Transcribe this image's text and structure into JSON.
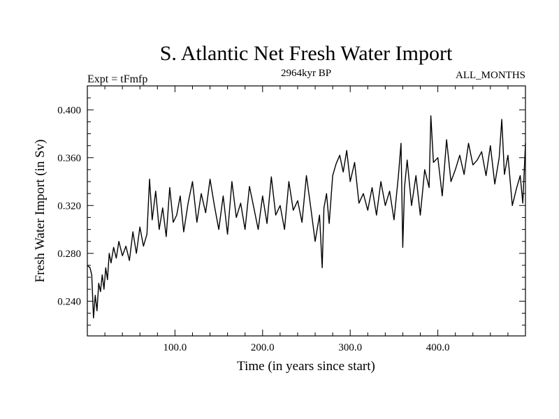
{
  "chart_data": {
    "type": "line",
    "title": "S. Atlantic Net Fresh Water Import",
    "subtitle": "2964kyr BP",
    "left_label": "Expt = tFmfp",
    "right_label": "ALL_MONTHS",
    "xlabel": "Time (in years since start)",
    "ylabel": "Fresh Water Import (in Sv)",
    "xlim": [
      0,
      500
    ],
    "ylim": [
      0.211,
      0.42
    ],
    "x_major_ticks": [
      100,
      200,
      300,
      400
    ],
    "x_tick_labels": [
      "100.0",
      "200.0",
      "300.0",
      "400.0"
    ],
    "y_major_ticks": [
      0.24,
      0.28,
      0.32,
      0.36,
      0.4
    ],
    "y_tick_labels": [
      "0.240",
      "0.280",
      "0.320",
      "0.360",
      "0.400"
    ],
    "series": [
      {
        "name": "Fresh Water Import",
        "color": "#000000",
        "x": [
          0,
          3,
          5,
          7,
          9,
          11,
          13,
          15,
          17,
          19,
          21,
          23,
          25,
          27,
          30,
          33,
          36,
          40,
          44,
          48,
          52,
          56,
          60,
          64,
          68,
          71,
          74,
          78,
          82,
          86,
          90,
          94,
          98,
          102,
          106,
          110,
          115,
          120,
          125,
          130,
          135,
          140,
          145,
          150,
          155,
          160,
          165,
          170,
          175,
          180,
          185,
          190,
          195,
          200,
          205,
          210,
          215,
          220,
          225,
          230,
          235,
          240,
          245,
          250,
          255,
          260,
          265,
          268,
          270,
          273,
          276,
          280,
          284,
          288,
          292,
          296,
          300,
          305,
          310,
          315,
          320,
          325,
          330,
          335,
          340,
          345,
          350,
          355,
          358,
          360,
          362,
          365,
          370,
          375,
          380,
          385,
          390,
          392,
          395,
          400,
          405,
          410,
          415,
          420,
          425,
          430,
          435,
          440,
          445,
          450,
          455,
          460,
          465,
          470,
          473,
          476,
          480,
          485,
          490,
          494,
          497,
          500
        ],
        "values": [
          0.27,
          0.268,
          0.262,
          0.226,
          0.245,
          0.232,
          0.255,
          0.248,
          0.262,
          0.25,
          0.268,
          0.258,
          0.28,
          0.272,
          0.285,
          0.276,
          0.29,
          0.278,
          0.286,
          0.274,
          0.298,
          0.28,
          0.302,
          0.286,
          0.296,
          0.342,
          0.308,
          0.332,
          0.3,
          0.318,
          0.294,
          0.335,
          0.306,
          0.312,
          0.328,
          0.298,
          0.322,
          0.34,
          0.306,
          0.33,
          0.314,
          0.342,
          0.32,
          0.3,
          0.328,
          0.296,
          0.34,
          0.31,
          0.322,
          0.3,
          0.336,
          0.318,
          0.3,
          0.328,
          0.305,
          0.344,
          0.312,
          0.32,
          0.3,
          0.34,
          0.316,
          0.324,
          0.306,
          0.345,
          0.318,
          0.29,
          0.312,
          0.268,
          0.318,
          0.33,
          0.305,
          0.345,
          0.355,
          0.362,
          0.348,
          0.366,
          0.34,
          0.356,
          0.322,
          0.33,
          0.316,
          0.335,
          0.312,
          0.34,
          0.32,
          0.332,
          0.308,
          0.345,
          0.372,
          0.285,
          0.335,
          0.358,
          0.32,
          0.345,
          0.312,
          0.35,
          0.335,
          0.395,
          0.356,
          0.36,
          0.328,
          0.375,
          0.34,
          0.35,
          0.362,
          0.346,
          0.372,
          0.354,
          0.358,
          0.365,
          0.345,
          0.37,
          0.338,
          0.36,
          0.392,
          0.346,
          0.362,
          0.32,
          0.335,
          0.345,
          0.322,
          0.372
        ]
      }
    ]
  }
}
